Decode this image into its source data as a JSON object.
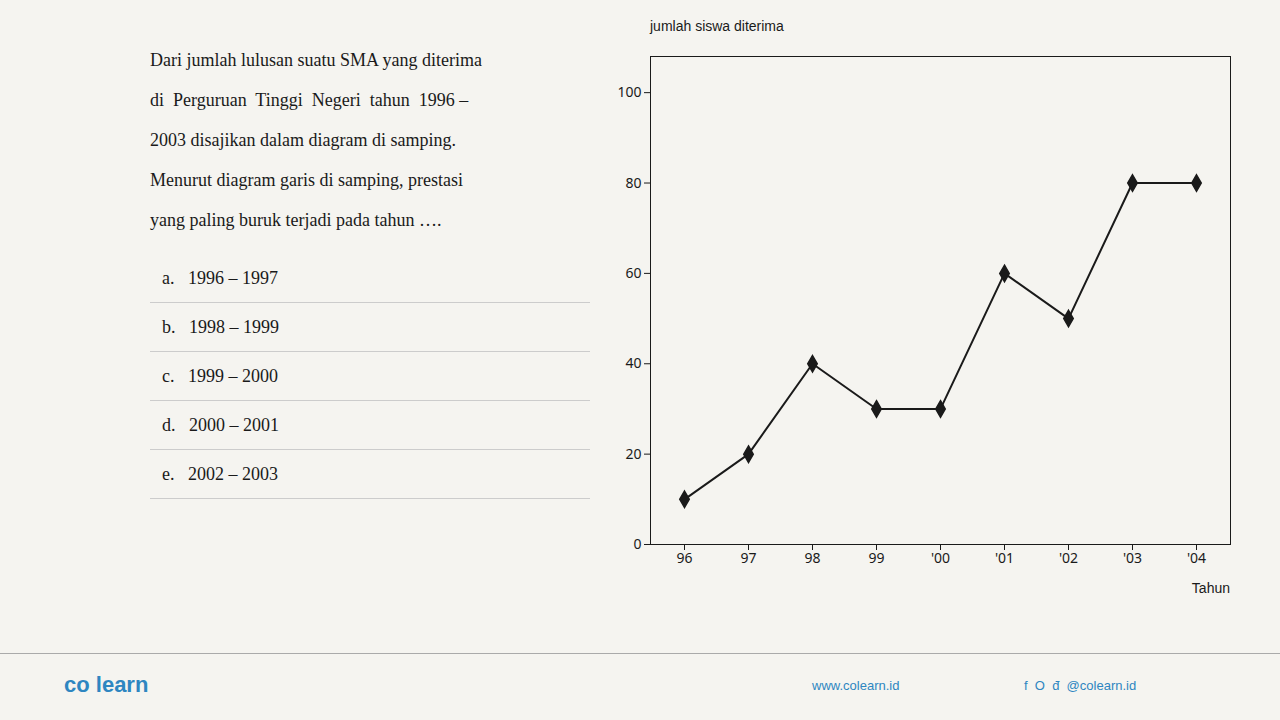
{
  "chart_data": {
    "type": "line",
    "categories": [
      "96",
      "97",
      "98",
      "99",
      "'00",
      "'01",
      "'02",
      "'03",
      "'04"
    ],
    "values": [
      10,
      20,
      40,
      30,
      30,
      60,
      50,
      80,
      80
    ],
    "color": "#1a1a1a",
    "marker": "diamond",
    "ylabel": "jumlah siswa diterima",
    "xlabel": "Tahun",
    "ylim": [
      0,
      108
    ],
    "yticks": [
      0,
      20,
      40,
      60,
      80,
      100
    ],
    "grid": false,
    "annotations": [
      [
        "Dari jumlah lulusan suatu SMA yang diterima",
        "di  Perguruan  Tinggi  Negeri  tahun  1996 –",
        "2003 disajikan dalam diagram di samping.",
        "Menurut diagram garis di samping, prestasi",
        "yang paling buruk terjadi pada tahun …."
      ],
      [
        "a.   1996 – 1997",
        "b.   1998 – 1999",
        "c.   1999 – 2000",
        "d.   2000 – 2001",
        "e.   2002 – 2003"
      ],
      [
        "co learn",
        "www.colearn.id",
        "f  O  đ  @colearn.id"
      ]
    ]
  }
}
